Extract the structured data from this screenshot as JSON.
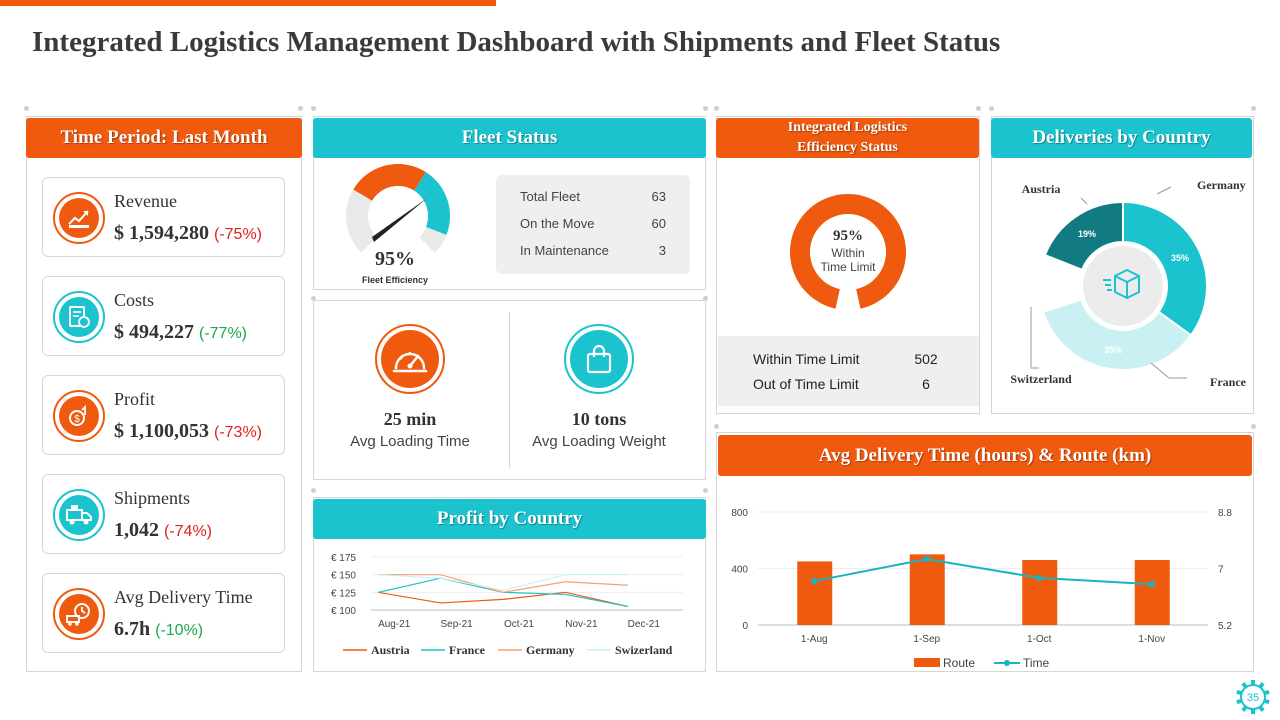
{
  "title": "Integrated Logistics Management Dashboard with Shipments and Fleet Status",
  "page_number": "35",
  "colors": {
    "orange": "#f05a0e",
    "teal": "#1bc3cf",
    "dark_teal": "#127a82",
    "light_teal": "#c9f1f4"
  },
  "time_period": {
    "header": "Time Period: Last Month",
    "kpis": [
      {
        "icon": "revenue-chart-icon",
        "label": "Revenue",
        "value": "$ 1,594,280",
        "change": "(-75%)",
        "trend": "negative"
      },
      {
        "icon": "invoice-costs-icon",
        "label": "Costs",
        "value": "$ 494,227",
        "change": "(-77%)",
        "trend": "positive"
      },
      {
        "icon": "profit-coin-icon",
        "label": "Profit",
        "value": "$ 1,100,053",
        "change": "(-73%)",
        "trend": "negative"
      },
      {
        "icon": "shipment-truck-icon",
        "label": "Shipments",
        "value": "1,042",
        "change": "(-74%)",
        "trend": "negative"
      },
      {
        "icon": "delivery-time-icon",
        "label": "Avg Delivery  Time",
        "value": "6.7h",
        "change": "(-10%)",
        "trend": "positive"
      }
    ]
  },
  "fleet_status": {
    "header": "Fleet Status",
    "efficiency_value": "95%",
    "efficiency_fraction": 0.95,
    "efficiency_label": "Fleet Efficiency",
    "rows": [
      {
        "label": "Total Fleet",
        "value": "63"
      },
      {
        "label": "On the Move",
        "value": "60"
      },
      {
        "label": "In Maintenance",
        "value": "3"
      }
    ]
  },
  "loading": {
    "time_value": "25 min",
    "time_label": "Avg Loading Time",
    "weight_value": "10 tons",
    "weight_label": "Avg Loading Weight"
  },
  "efficiency_status": {
    "header_line1": "Integrated Logistics",
    "header_line2": "Efficiency  Status",
    "center_value": "95%",
    "center_line1": "Within",
    "center_line2": "Time Limit",
    "fraction": 0.95,
    "rows": [
      {
        "label": "Within Time Limit",
        "value": "502"
      },
      {
        "label": "Out of Time Limit",
        "value": "6"
      }
    ]
  },
  "chart_data": [
    {
      "id": "deliveries-by-country",
      "type": "pie",
      "title": "Deliveries by Country",
      "labels": [
        "Germany",
        "France",
        "Switzerland",
        "Austria"
      ],
      "values": [
        35,
        35,
        11,
        19
      ],
      "data_labels": [
        "35%",
        "35%",
        "",
        "19%"
      ],
      "colors": [
        "#1bc3cf",
        "#c9f1f4",
        "#ffffff",
        "#127a82"
      ]
    },
    {
      "id": "profit-by-country",
      "type": "line",
      "title": "Profit by Country",
      "categories": [
        "Aug-21",
        "Sep-21",
        "Oct-21",
        "Nov-21",
        "Dec-21"
      ],
      "y_ticks": [
        "€ 175",
        "€ 150",
        "€ 125",
        "€ 100"
      ],
      "ylim": [
        100,
        175
      ],
      "series": [
        {
          "name": "Austria",
          "values": [
            125,
            110,
            115,
            125,
            105
          ],
          "color": "#f05a0e"
        },
        {
          "name": "France",
          "values": [
            125,
            145,
            125,
            122,
            105
          ],
          "color": "#1bc3cf"
        },
        {
          "name": "Germany",
          "values": [
            150,
            150,
            125,
            140,
            135
          ],
          "color": "#f5a070"
        },
        {
          "name": "Swizerland",
          "values": [
            150,
            145,
            128,
            150,
            150
          ],
          "color": "#c9f1f4"
        }
      ]
    },
    {
      "id": "avg-delivery-time-route",
      "type": "bar",
      "title": "Avg Delivery Time (hours) & Route (km)",
      "categories": [
        "1-Aug",
        "1-Sep",
        "1-Oct",
        "1-Nov"
      ],
      "series": [
        {
          "name": "Route",
          "kind": "bar",
          "values": [
            450,
            500,
            460,
            460
          ],
          "axis": "left",
          "color": "#f05a0e"
        },
        {
          "name": "Time",
          "kind": "line",
          "values": [
            6.6,
            7.3,
            6.7,
            6.5
          ],
          "axis": "right",
          "color": "#1bb3c0"
        }
      ],
      "y_left_ticks": [
        "800",
        "400",
        "0"
      ],
      "ylim_left": [
        0,
        800
      ],
      "y_right_ticks": [
        "8.8",
        "7",
        "5.2"
      ],
      "ylim_right": [
        5.2,
        8.8
      ]
    }
  ]
}
